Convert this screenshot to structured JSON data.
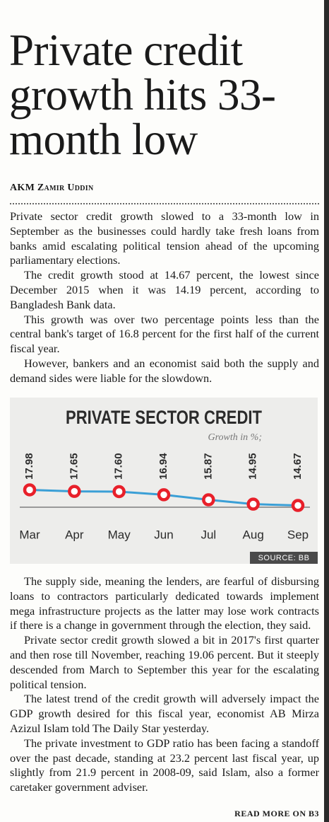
{
  "headline": "Private credit growth hits 33-month low",
  "byline": "AKM Zamir Uddin",
  "body_top": [
    "Private sector credit growth slowed to a 33-month low in September as the businesses could hardly take fresh loans from banks amid escalating political tension ahead of the upcoming parliamentary elections.",
    "The credit growth stood at 14.67 percent, the lowest since December 2015 when it was 14.19 percent, according to Bangladesh Bank data.",
    "This growth was over two percentage points less than the central bank's target of 16.8 percent for the first half of the current fiscal year.",
    "However, bankers and an economist said both the supply and demand sides were liable for the slowdown."
  ],
  "chart_data": {
    "type": "line",
    "title": "PRIVATE SECTOR CREDIT",
    "subtitle": "Growth in %;",
    "categories": [
      "Mar",
      "Apr",
      "May",
      "Jun",
      "Jul",
      "Aug",
      "Sep"
    ],
    "values": [
      17.98,
      17.65,
      17.6,
      16.94,
      15.87,
      14.95,
      14.67
    ],
    "value_labels": [
      "17.98",
      "17.65",
      "17.60",
      "16.94",
      "15.87",
      "14.95",
      "14.67"
    ],
    "ylim": [
      14,
      20
    ],
    "color": "#3a9fd6",
    "marker_color": "#e8202a",
    "source": "SOURCE: BB"
  },
  "body_bottom": [
    "The supply side, meaning the lenders, are fearful of disbursing loans to contractors particularly dedicated towards implement mega infrastructure projects as the latter may lose work contracts if there is a change in government through the election, they said.",
    "Private sector credit growth slowed a bit in 2017's first quarter and then rose till November, reaching 19.06 percent. But it steeply descended from March to September this year for the escalating political tension.",
    "The latest trend of the credit growth will adversely impact the GDP growth desired for this fiscal year, economist AB Mirza Azizul Islam told The Daily Star yesterday.",
    "The private investment to GDP ratio has been facing a standoff over the past decade, standing at 23.2 percent last fiscal year, up slightly from 21.9 percent in 2008-09, said Islam, also a former caretaker government adviser."
  ],
  "read_more": "READ MORE ON B3"
}
